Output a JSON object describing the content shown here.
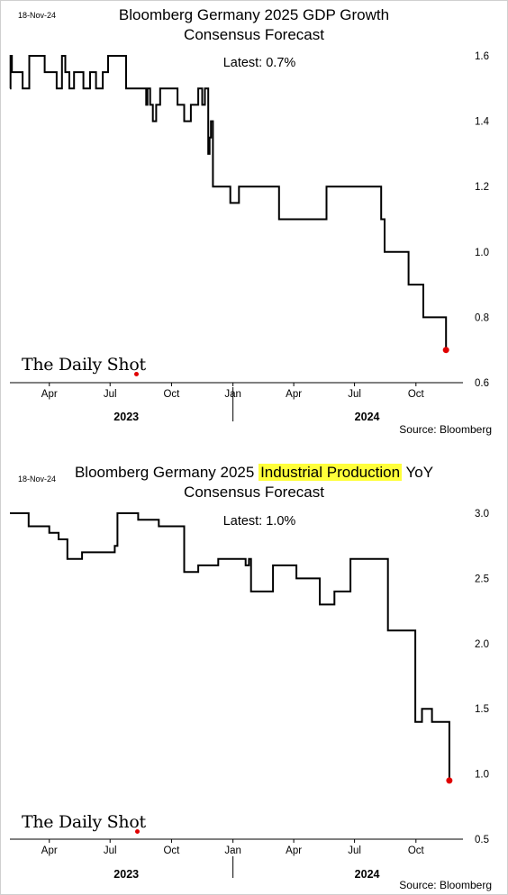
{
  "colors": {
    "line": "#000000",
    "latest_marker": "#e00000",
    "highlight": "#ffff3a"
  },
  "branding": {
    "logo_text": "The Daily Shot"
  },
  "panels": [
    {
      "date_stamp": "18-Nov-24",
      "title_line1": "Bloomberg Germany 2025 GDP Growth",
      "title_line2": "Consensus Forecast",
      "latest_label": "Latest:  0.7%",
      "source": "Source: Bloomberg"
    },
    {
      "date_stamp": "18-Nov-24",
      "title_pre": "Bloomberg Germany 2025 ",
      "title_highlight": "Industrial Production",
      "title_post": " YoY",
      "title_line2": "Consensus Forecast",
      "latest_label": "Latest:  1.0%",
      "source": "Source: Bloomberg"
    }
  ],
  "chart_data": [
    {
      "type": "line",
      "title": "Bloomberg Germany 2025 GDP Growth Consensus Forecast",
      "annotation": "Latest:  0.7%",
      "x_tick_labels": [
        "Apr",
        "Jul",
        "Oct",
        "Jan",
        "Apr",
        "Jul",
        "Oct"
      ],
      "year_labels": [
        "2023",
        "2024"
      ],
      "y_ticks": [
        "0.6",
        "0.8",
        "1.0",
        "1.2",
        "1.4",
        "1.6"
      ],
      "ylim": [
        0.6,
        1.6
      ],
      "xlim": [
        "2023-02-01",
        "2024-12-05"
      ],
      "y_axis_side": "right",
      "grid": false,
      "series": [
        {
          "points": [
            [
              "2023-02-01",
              1.5
            ],
            [
              "2023-02-02",
              1.6
            ],
            [
              "2023-02-04",
              1.55
            ],
            [
              "2023-02-20",
              1.5
            ],
            [
              "2023-03-02",
              1.6
            ],
            [
              "2023-03-25",
              1.55
            ],
            [
              "2023-04-12",
              1.5
            ],
            [
              "2023-04-20",
              1.6
            ],
            [
              "2023-04-25",
              1.55
            ],
            [
              "2023-05-01",
              1.5
            ],
            [
              "2023-05-08",
              1.55
            ],
            [
              "2023-05-22",
              1.5
            ],
            [
              "2023-06-01",
              1.55
            ],
            [
              "2023-06-10",
              1.5
            ],
            [
              "2023-06-20",
              1.55
            ],
            [
              "2023-06-28",
              1.6
            ],
            [
              "2023-07-25",
              1.5
            ],
            [
              "2023-08-24",
              1.45
            ],
            [
              "2023-08-26",
              1.5
            ],
            [
              "2023-08-30",
              1.45
            ],
            [
              "2023-09-03",
              1.4
            ],
            [
              "2023-09-08",
              1.45
            ],
            [
              "2023-09-14",
              1.5
            ],
            [
              "2023-10-10",
              1.45
            ],
            [
              "2023-10-20",
              1.4
            ],
            [
              "2023-10-30",
              1.45
            ],
            [
              "2023-11-10",
              1.5
            ],
            [
              "2023-11-16",
              1.45
            ],
            [
              "2023-11-20",
              1.5
            ],
            [
              "2023-11-25",
              1.3
            ],
            [
              "2023-11-27",
              1.35
            ],
            [
              "2023-11-29",
              1.4
            ],
            [
              "2023-12-02",
              1.2
            ],
            [
              "2023-12-28",
              1.15
            ],
            [
              "2024-01-10",
              1.2
            ],
            [
              "2024-03-10",
              1.1
            ],
            [
              "2024-05-20",
              1.2
            ],
            [
              "2024-08-10",
              1.1
            ],
            [
              "2024-08-15",
              1.0
            ],
            [
              "2024-09-20",
              0.9
            ],
            [
              "2024-10-12",
              0.8
            ],
            [
              "2024-11-15",
              0.7
            ]
          ]
        }
      ]
    },
    {
      "type": "line",
      "title": "Bloomberg Germany 2025 Industrial Production YoY Consensus Forecast",
      "annotation": "Latest:  1.0%",
      "x_tick_labels": [
        "Apr",
        "Jul",
        "Oct",
        "Jan",
        "Apr",
        "Jul",
        "Oct"
      ],
      "year_labels": [
        "2023",
        "2024"
      ],
      "y_ticks": [
        "0.5",
        "1.0",
        "1.5",
        "2.0",
        "2.5",
        "3.0"
      ],
      "ylim": [
        0.5,
        3.0
      ],
      "xlim": [
        "2023-02-01",
        "2024-12-05"
      ],
      "y_axis_side": "right",
      "grid": false,
      "series": [
        {
          "points": [
            [
              "2023-02-01",
              3.0
            ],
            [
              "2023-03-01",
              2.9
            ],
            [
              "2023-04-01",
              2.85
            ],
            [
              "2023-04-15",
              2.8
            ],
            [
              "2023-04-28",
              2.65
            ],
            [
              "2023-05-20",
              2.7
            ],
            [
              "2023-07-08",
              2.75
            ],
            [
              "2023-07-12",
              3.0
            ],
            [
              "2023-08-12",
              2.95
            ],
            [
              "2023-09-12",
              2.9
            ],
            [
              "2023-10-20",
              2.55
            ],
            [
              "2023-11-10",
              2.6
            ],
            [
              "2023-12-10",
              2.65
            ],
            [
              "2024-01-20",
              2.6
            ],
            [
              "2024-01-25",
              2.65
            ],
            [
              "2024-01-28",
              2.4
            ],
            [
              "2024-03-01",
              2.6
            ],
            [
              "2024-04-05",
              2.5
            ],
            [
              "2024-05-10",
              2.3
            ],
            [
              "2024-06-01",
              2.4
            ],
            [
              "2024-06-25",
              2.65
            ],
            [
              "2024-08-20",
              2.1
            ],
            [
              "2024-09-30",
              1.4
            ],
            [
              "2024-10-10",
              1.5
            ],
            [
              "2024-10-25",
              1.4
            ],
            [
              "2024-11-20",
              0.95
            ]
          ]
        }
      ]
    }
  ]
}
